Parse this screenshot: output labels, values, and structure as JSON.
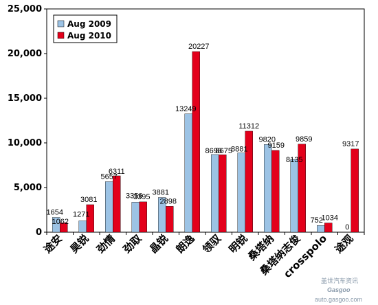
{
  "chart_data": {
    "type": "bar",
    "categories": [
      "途安",
      "昊锐",
      "劲情",
      "劲取",
      "晶锐",
      "朗逸",
      "领驭",
      "明锐",
      "桑塔纳",
      "桑塔纳志俊",
      "crosspolo",
      "途观"
    ],
    "series": [
      {
        "name": "Aug 2009",
        "color": "#9cc3e5",
        "values": [
          1654,
          1271,
          5657,
          3356,
          3881,
          13249,
          8698,
          8881,
          9820,
          8135,
          752,
          0
        ]
      },
      {
        "name": "Aug 2010",
        "color": "#e3001b",
        "values": [
          1062,
          3081,
          6311,
          3395,
          2898,
          20227,
          8675,
          11312,
          9159,
          9859,
          1034,
          9317
        ]
      }
    ],
    "ylim": [
      0,
      25000
    ],
    "yticks": [
      0,
      5000,
      10000,
      15000,
      20000,
      25000
    ],
    "ytick_labels": [
      "0",
      "5,000",
      "10,000",
      "15,000",
      "20,000",
      "25,000"
    ],
    "title": "",
    "xlabel": "",
    "ylabel": "",
    "legend_position": "top-left",
    "grid": false
  },
  "watermark": {
    "logo_text": "Gasgoo",
    "url": "auto.gasgoo.com",
    "cn_text": "盖世汽车资讯"
  }
}
